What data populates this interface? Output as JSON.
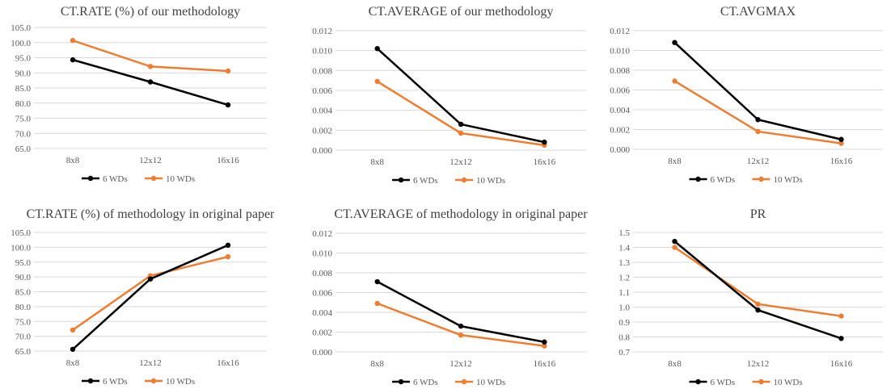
{
  "colors": {
    "series1": "#000000",
    "series2": "#ED7D31",
    "grid": "#D9D9D9",
    "text": "#595959",
    "title": "#404040"
  },
  "chart_data": [
    {
      "type": "line",
      "title": "CT.RATE (%) of our methodology",
      "categories": [
        "8x8",
        "12x12",
        "16x16"
      ],
      "ylim": [
        65,
        105
      ],
      "yticks": [
        "65.0",
        "70.0",
        "75.0",
        "80.0",
        "85.0",
        "90.0",
        "95.0",
        "100.0",
        "105.0"
      ],
      "grid": true,
      "legend": "bottom",
      "series": [
        {
          "name": "6 WDs",
          "values": [
            94.3,
            87.0,
            79.4
          ]
        },
        {
          "name": "10 WDs",
          "values": [
            100.7,
            92.1,
            90.6
          ]
        }
      ]
    },
    {
      "type": "line",
      "title": "CT.AVERAGE of our methodology",
      "categories": [
        "8x8",
        "12x12",
        "16x16"
      ],
      "ylim": [
        0,
        0.012
      ],
      "yticks": [
        "0.000",
        "0.002",
        "0.004",
        "0.006",
        "0.008",
        "0.010",
        "0.012"
      ],
      "grid": true,
      "legend": "bottom",
      "series": [
        {
          "name": "6 WDs",
          "values": [
            0.0102,
            0.0026,
            0.0008
          ]
        },
        {
          "name": "10 WDs",
          "values": [
            0.0069,
            0.0017,
            0.0005
          ]
        }
      ]
    },
    {
      "type": "line",
      "title": "CT.AVGMAX",
      "categories": [
        "8x8",
        "12x12",
        "16x16"
      ],
      "ylim": [
        0,
        0.012
      ],
      "yticks": [
        "0.000",
        "0.002",
        "0.004",
        "0.006",
        "0.008",
        "0.010",
        "0.012"
      ],
      "grid": true,
      "legend": "bottom",
      "series": [
        {
          "name": "6 WDs",
          "values": [
            0.0108,
            0.003,
            0.001
          ]
        },
        {
          "name": "10 WDs",
          "values": [
            0.0069,
            0.0018,
            0.0006
          ]
        }
      ]
    },
    {
      "type": "line",
      "title": "CT.RATE (%) of methodology in original paper",
      "categories": [
        "8x8",
        "12x12",
        "16x16"
      ],
      "ylim": [
        65,
        105
      ],
      "yticks": [
        "65.0",
        "70.0",
        "75.0",
        "80.0",
        "85.0",
        "90.0",
        "95.0",
        "100.0",
        "105.0"
      ],
      "grid": true,
      "legend": "bottom",
      "series": [
        {
          "name": "6 WDs",
          "values": [
            65.6,
            89.3,
            100.7
          ]
        },
        {
          "name": "10 WDs",
          "values": [
            72.1,
            90.4,
            96.8
          ]
        }
      ]
    },
    {
      "type": "line",
      "title": "CT.AVERAGE of methodology in original paper",
      "categories": [
        "8x8",
        "12x12",
        "16x16"
      ],
      "ylim": [
        0,
        0.012
      ],
      "yticks": [
        "0.000",
        "0.002",
        "0.004",
        "0.006",
        "0.008",
        "0.010",
        "0.012"
      ],
      "grid": true,
      "legend": "bottom",
      "series": [
        {
          "name": "6 WDs",
          "values": [
            0.0071,
            0.0026,
            0.001
          ]
        },
        {
          "name": "10 WDs",
          "values": [
            0.0049,
            0.0017,
            0.0006
          ]
        }
      ]
    },
    {
      "type": "line",
      "title": "PR",
      "categories": [
        "8x8",
        "12x12",
        "16x16"
      ],
      "ylim": [
        0.7,
        1.5
      ],
      "yticks": [
        "0.7",
        "0.8",
        "0.9",
        "1.0",
        "1.1",
        "1.2",
        "1.3",
        "1.4",
        "1.5"
      ],
      "grid": true,
      "legend": "bottom",
      "series": [
        {
          "name": "6 WDs",
          "values": [
            1.44,
            0.98,
            0.79
          ]
        },
        {
          "name": "10 WDs",
          "values": [
            1.4,
            1.02,
            0.94
          ]
        }
      ]
    }
  ]
}
